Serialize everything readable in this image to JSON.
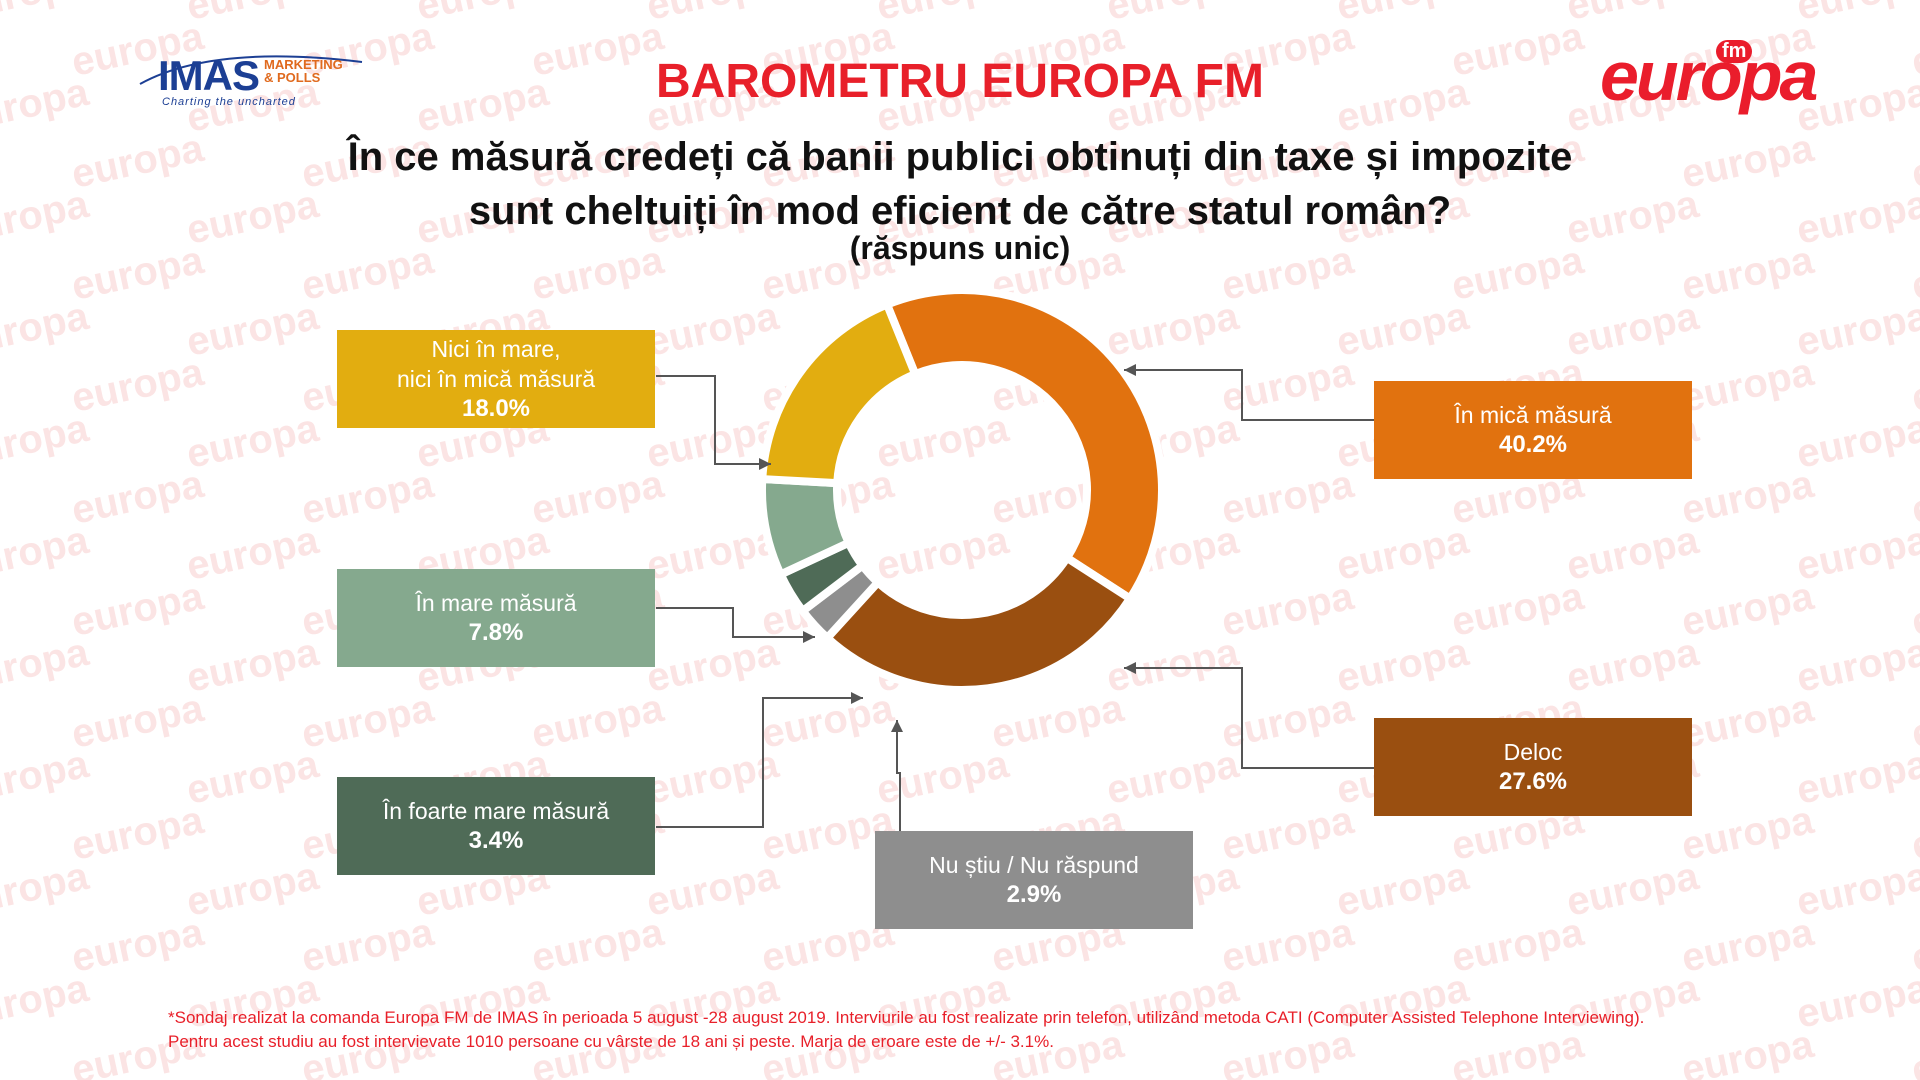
{
  "header": {
    "title": "BAROMETRU EUROPA FM",
    "question_line1": "În ce măsură credeți că banii publici obtinuți din taxe și impozite",
    "question_line2": "sunt cheltuiți în mod eficient de către statul român?",
    "subtitle": "(răspuns unic)"
  },
  "logos": {
    "imas_word": "IMAS",
    "imas_sub1": "MARKETING",
    "imas_sub2": "& POLLS",
    "imas_tagline": "Charting the uncharted",
    "europa_word": "europa",
    "europa_fm": "fm"
  },
  "watermark_text": "europa",
  "chart_data": {
    "type": "pie",
    "variant": "donut",
    "unit": "%",
    "slices": [
      {
        "label": "În mică măsură",
        "value": 40.2,
        "display": "40.2%",
        "color": "#e1720f"
      },
      {
        "label": "Deloc",
        "value": 27.6,
        "display": "27.6%",
        "color": "#9a4f10"
      },
      {
        "label": "Nu știu / Nu răspund",
        "value": 2.9,
        "display": "2.9%",
        "color": "#8e8e8e"
      },
      {
        "label": "În foarte mare măsură",
        "value": 3.4,
        "display": "3.4%",
        "color": "#4f6b57"
      },
      {
        "label": "În mare măsură",
        "value": 7.8,
        "display": "7.8%",
        "color": "#85a98e"
      },
      {
        "label": "Nici în mare,\nnici în mică măsură",
        "value": 18.0,
        "display": "18.0%",
        "color": "#e2ad10"
      }
    ]
  },
  "footnote": {
    "line1": "*Sondaj realizat la comanda Europa FM de IMAS în perioada 5 august -28 august 2019. Interviurile au fost realizate prin telefon, utilizând metoda CATI (Computer Assisted Telephone Interviewing).",
    "line2": "Pentru acest studiu au fost intervievate 1010 persoane cu vârste de 18 ani și peste. Marja de eroare este de +/- 3.1%."
  }
}
